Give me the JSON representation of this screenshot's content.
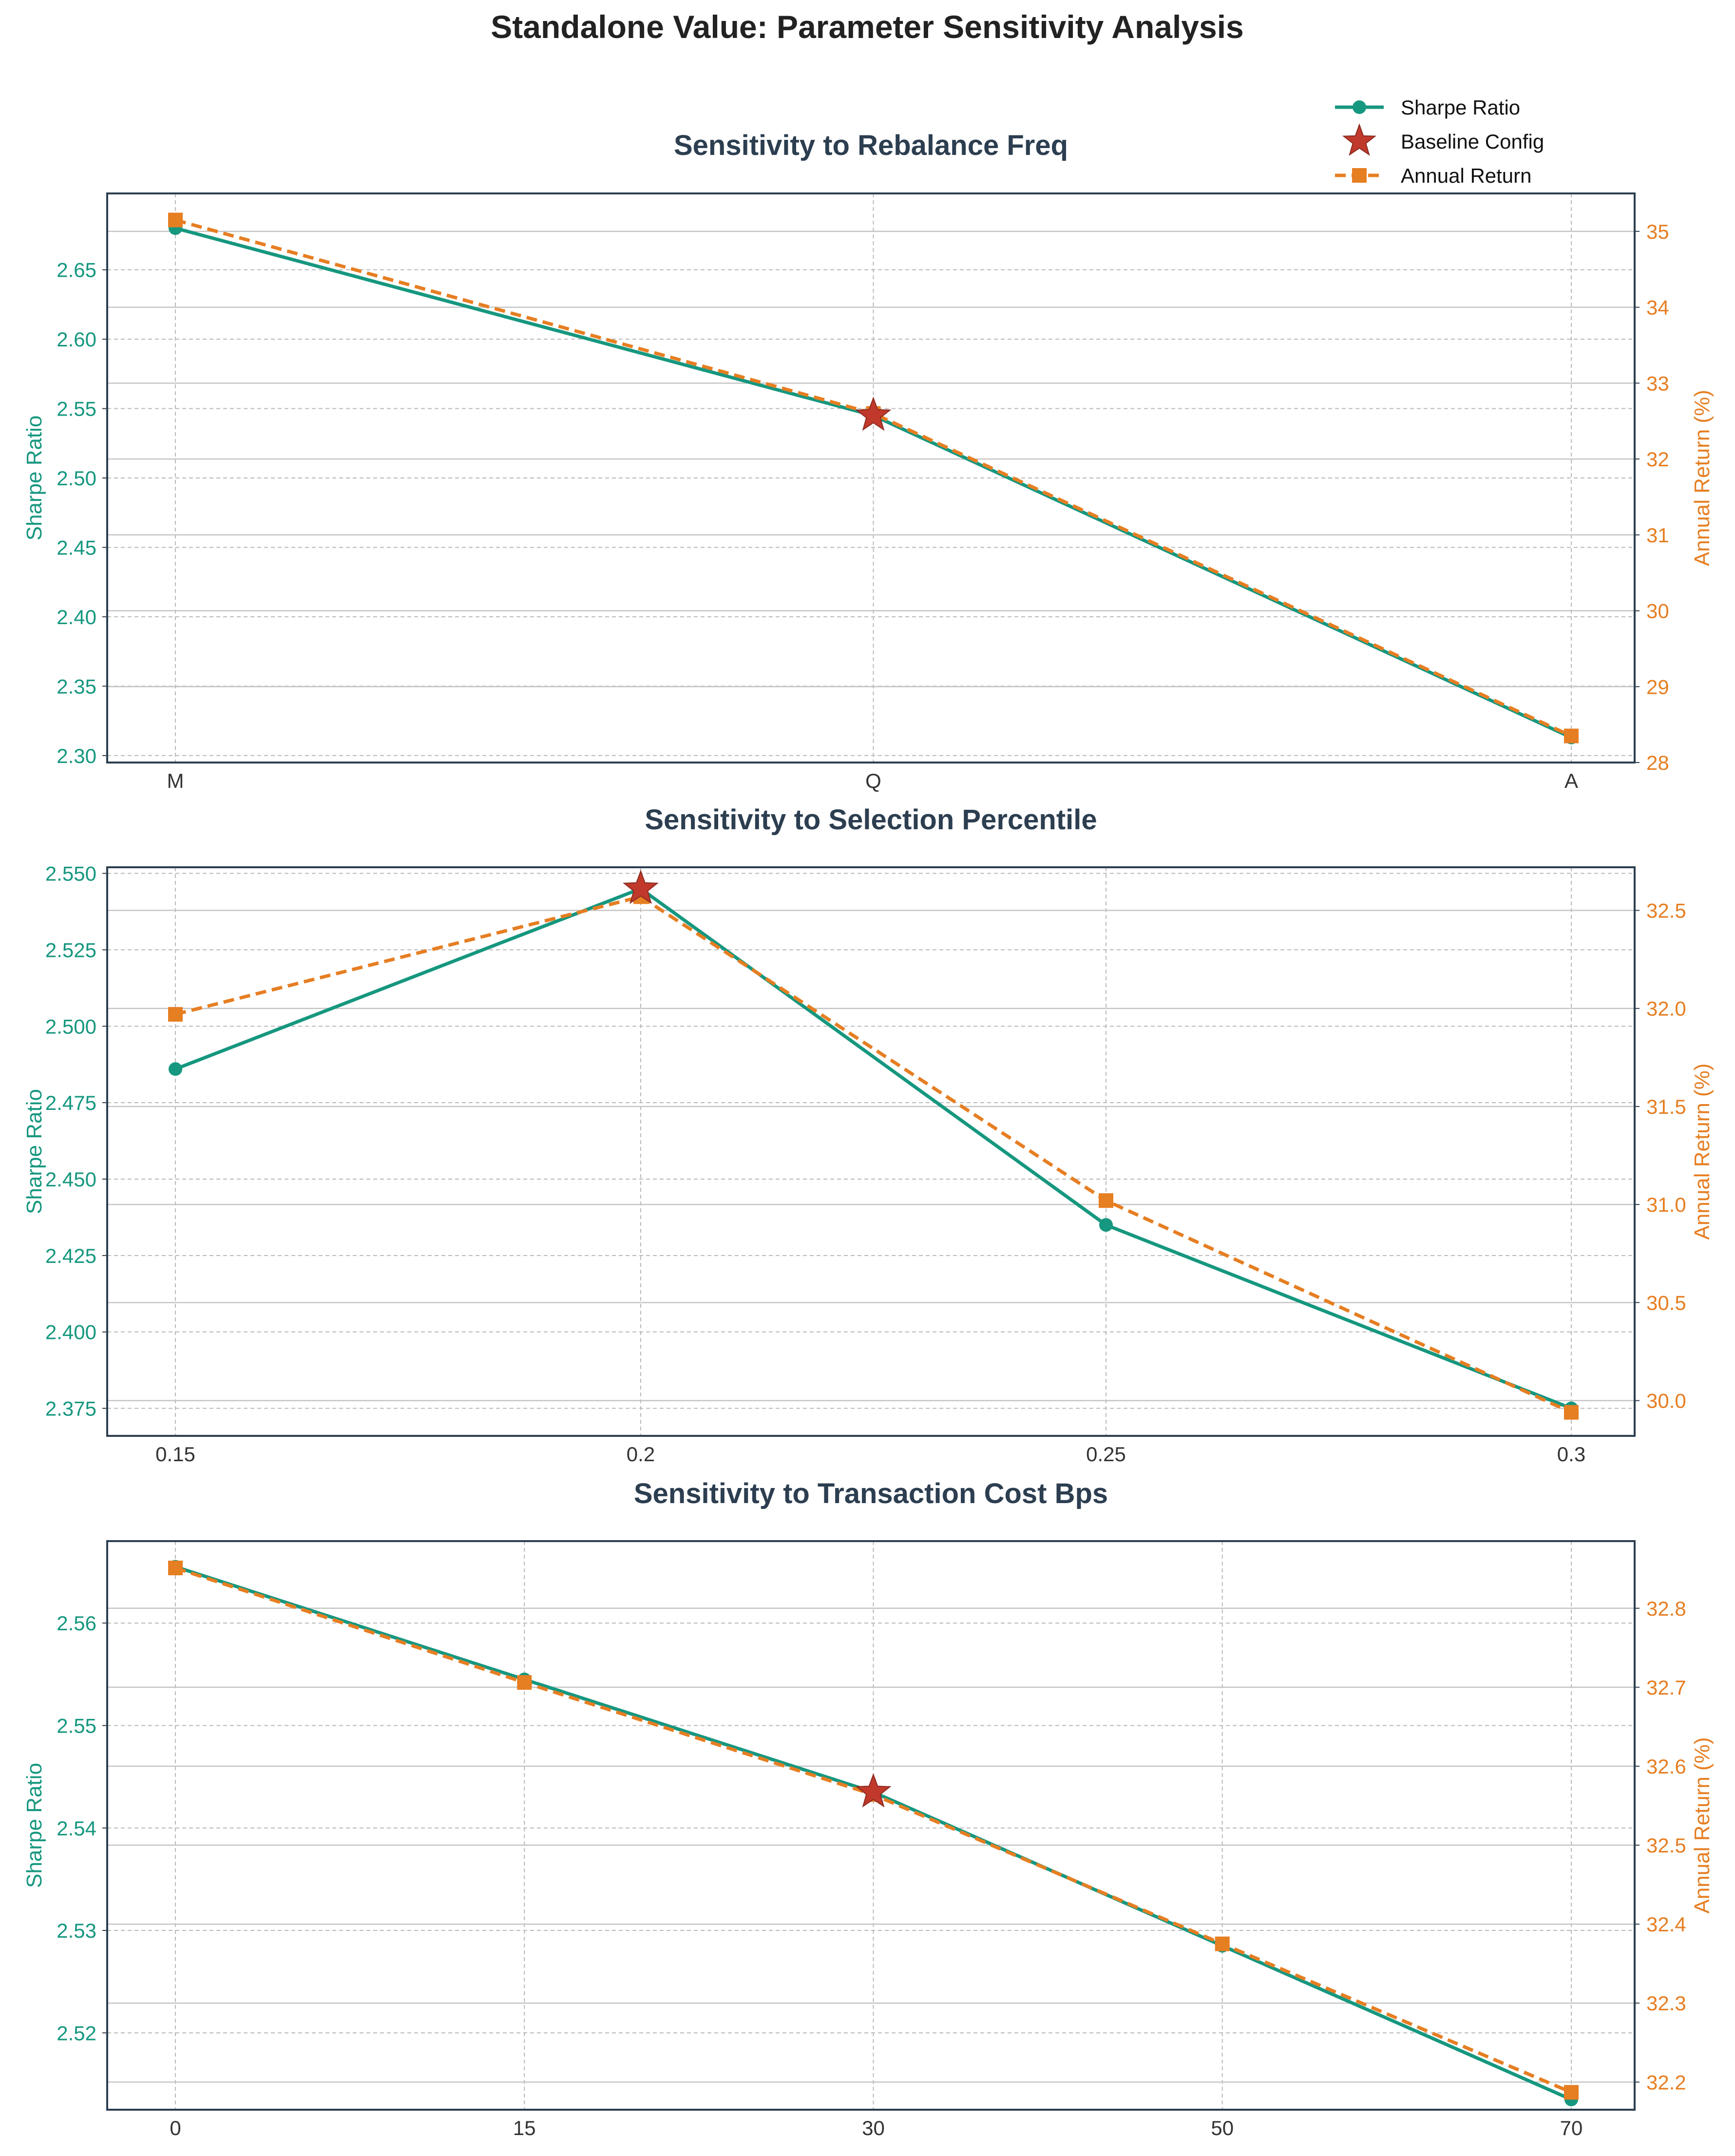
{
  "figure": {
    "title": "Standalone Value: Parameter Sensitivity Analysis"
  },
  "legend": {
    "placement": "top-right",
    "entries": [
      {
        "label": "Sharpe Ratio",
        "marker": "circle",
        "line": "solid",
        "color": "#16977f"
      },
      {
        "label": "Baseline Config",
        "marker": "star",
        "line": "none",
        "color": "#c0392b"
      },
      {
        "label": "Annual Return",
        "marker": "square",
        "line": "dashed",
        "color": "#e67e22"
      }
    ]
  },
  "colors": {
    "sharpe": "#16977f",
    "annual": "#e67e22",
    "baseline": "#c0392b",
    "title": "#2c3e50",
    "axis": "#2c3e50",
    "grid": "#b8b8b8"
  },
  "chart_data": [
    {
      "type": "line",
      "title": "Sensitivity to Rebalance Freq",
      "x": [
        "M",
        "Q",
        "A"
      ],
      "x_scale": "categorical",
      "xlabel": "",
      "ylabel_left": "Sharpe Ratio",
      "ylabel_right": "Annual Return (%)",
      "ylim_left": [
        2.295,
        2.705
      ],
      "ylim_right": [
        28.0,
        35.5
      ],
      "yticks_left": [
        "2.30",
        "2.35",
        "2.40",
        "2.45",
        "2.50",
        "2.55",
        "2.60",
        "2.65"
      ],
      "yticks_right": [
        "28",
        "29",
        "30",
        "31",
        "32",
        "33",
        "34",
        "35"
      ],
      "grid": true,
      "baseline_index": 1,
      "series": [
        {
          "name": "Sharpe Ratio",
          "axis": "left",
          "values": [
            2.68,
            2.545,
            2.313
          ]
        },
        {
          "name": "Annual Return",
          "axis": "right",
          "values": [
            35.15,
            32.6,
            28.35
          ]
        }
      ]
    },
    {
      "type": "line",
      "title": "Sensitivity to Selection Percentile",
      "x": [
        0.15,
        0.2,
        0.25,
        0.3
      ],
      "x_scale": "categorical",
      "xticks": [
        "0.15",
        "0.2",
        "0.25",
        "0.3"
      ],
      "xlabel": "",
      "ylabel_left": "Sharpe Ratio",
      "ylabel_right": "Annual Return (%)",
      "ylim_left": [
        2.366,
        2.552
      ],
      "ylim_right": [
        29.82,
        32.72
      ],
      "yticks_left": [
        "2.375",
        "2.400",
        "2.425",
        "2.450",
        "2.475",
        "2.500",
        "2.525",
        "2.550"
      ],
      "yticks_right": [
        "30.0",
        "30.5",
        "31.0",
        "31.5",
        "32.0",
        "32.5"
      ],
      "grid": true,
      "baseline_index": 1,
      "series": [
        {
          "name": "Sharpe Ratio",
          "axis": "left",
          "values": [
            2.486,
            2.545,
            2.435,
            2.375
          ]
        },
        {
          "name": "Annual Return",
          "axis": "right",
          "values": [
            31.97,
            32.57,
            31.02,
            29.94
          ]
        }
      ]
    },
    {
      "type": "line",
      "title": "Sensitivity to Transaction Cost Bps",
      "x": [
        0,
        15,
        30,
        50,
        70
      ],
      "x_scale": "categorical",
      "xticks": [
        "0",
        "15",
        "30",
        "50",
        "70"
      ],
      "xlabel": "",
      "ylabel_left": "Sharpe Ratio",
      "ylabel_right": "Annual Return (%)",
      "ylim_left": [
        2.5125,
        2.568
      ],
      "ylim_right": [
        32.165,
        32.885
      ],
      "yticks_left": [
        "2.52",
        "2.53",
        "2.54",
        "2.55",
        "2.56"
      ],
      "yticks_right": [
        "32.2",
        "32.3",
        "32.4",
        "32.5",
        "32.6",
        "32.7",
        "32.8"
      ],
      "grid": true,
      "baseline_index": 2,
      "series": [
        {
          "name": "Sharpe Ratio",
          "axis": "left",
          "values": [
            2.5655,
            2.5545,
            2.5435,
            2.5285,
            2.5135
          ]
        },
        {
          "name": "Annual Return",
          "axis": "right",
          "values": [
            32.851,
            32.706,
            32.564,
            32.375,
            32.187
          ]
        }
      ]
    }
  ]
}
